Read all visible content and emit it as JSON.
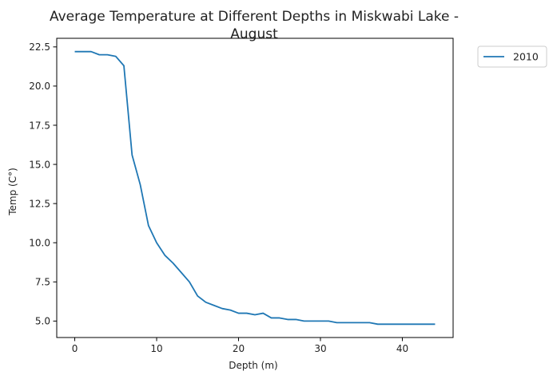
{
  "chart_data": {
    "type": "line",
    "title": "Average Temperature at Different Depths in Miskwabi Lake - August",
    "title_lines": [
      "Average Temperature at Different Depths in Miskwabi Lake -",
      "August"
    ],
    "xlabel": "Depth (m)",
    "ylabel": "Temp (C°)",
    "xlim": [
      -2.2,
      46.2
    ],
    "ylim": [
      3.95,
      23.05
    ],
    "xticks": [
      0,
      10,
      20,
      30,
      40
    ],
    "xtick_labels": [
      "0",
      "10",
      "20",
      "30",
      "40"
    ],
    "yticks": [
      5.0,
      7.5,
      10.0,
      12.5,
      15.0,
      17.5,
      20.0,
      22.5
    ],
    "ytick_labels": [
      "5.0",
      "7.5",
      "10.0",
      "12.5",
      "15.0",
      "17.5",
      "20.0",
      "22.5"
    ],
    "grid": false,
    "legend_position": "outside-top-right",
    "series": [
      {
        "name": "2010",
        "color": "#1f77b4",
        "x": [
          0,
          1,
          2,
          3,
          4,
          5,
          6,
          7,
          8,
          9,
          10,
          11,
          12,
          13,
          14,
          15,
          16,
          17,
          18,
          19,
          20,
          21,
          22,
          23,
          24,
          25,
          26,
          27,
          28,
          29,
          30,
          31,
          32,
          33,
          34,
          35,
          36,
          37,
          38,
          39,
          40,
          41,
          42,
          43,
          44
        ],
        "y": [
          22.2,
          22.2,
          22.2,
          22.0,
          22.0,
          21.9,
          21.3,
          15.6,
          13.7,
          11.1,
          10.0,
          9.2,
          8.7,
          8.1,
          7.5,
          6.6,
          6.2,
          6.0,
          5.8,
          5.7,
          5.5,
          5.5,
          5.4,
          5.5,
          5.2,
          5.2,
          5.1,
          5.1,
          5.0,
          5.0,
          5.0,
          5.0,
          4.9,
          4.9,
          4.9,
          4.9,
          4.9,
          4.8,
          4.8,
          4.8,
          4.8,
          4.8,
          4.8,
          4.8,
          4.8
        ]
      }
    ]
  }
}
